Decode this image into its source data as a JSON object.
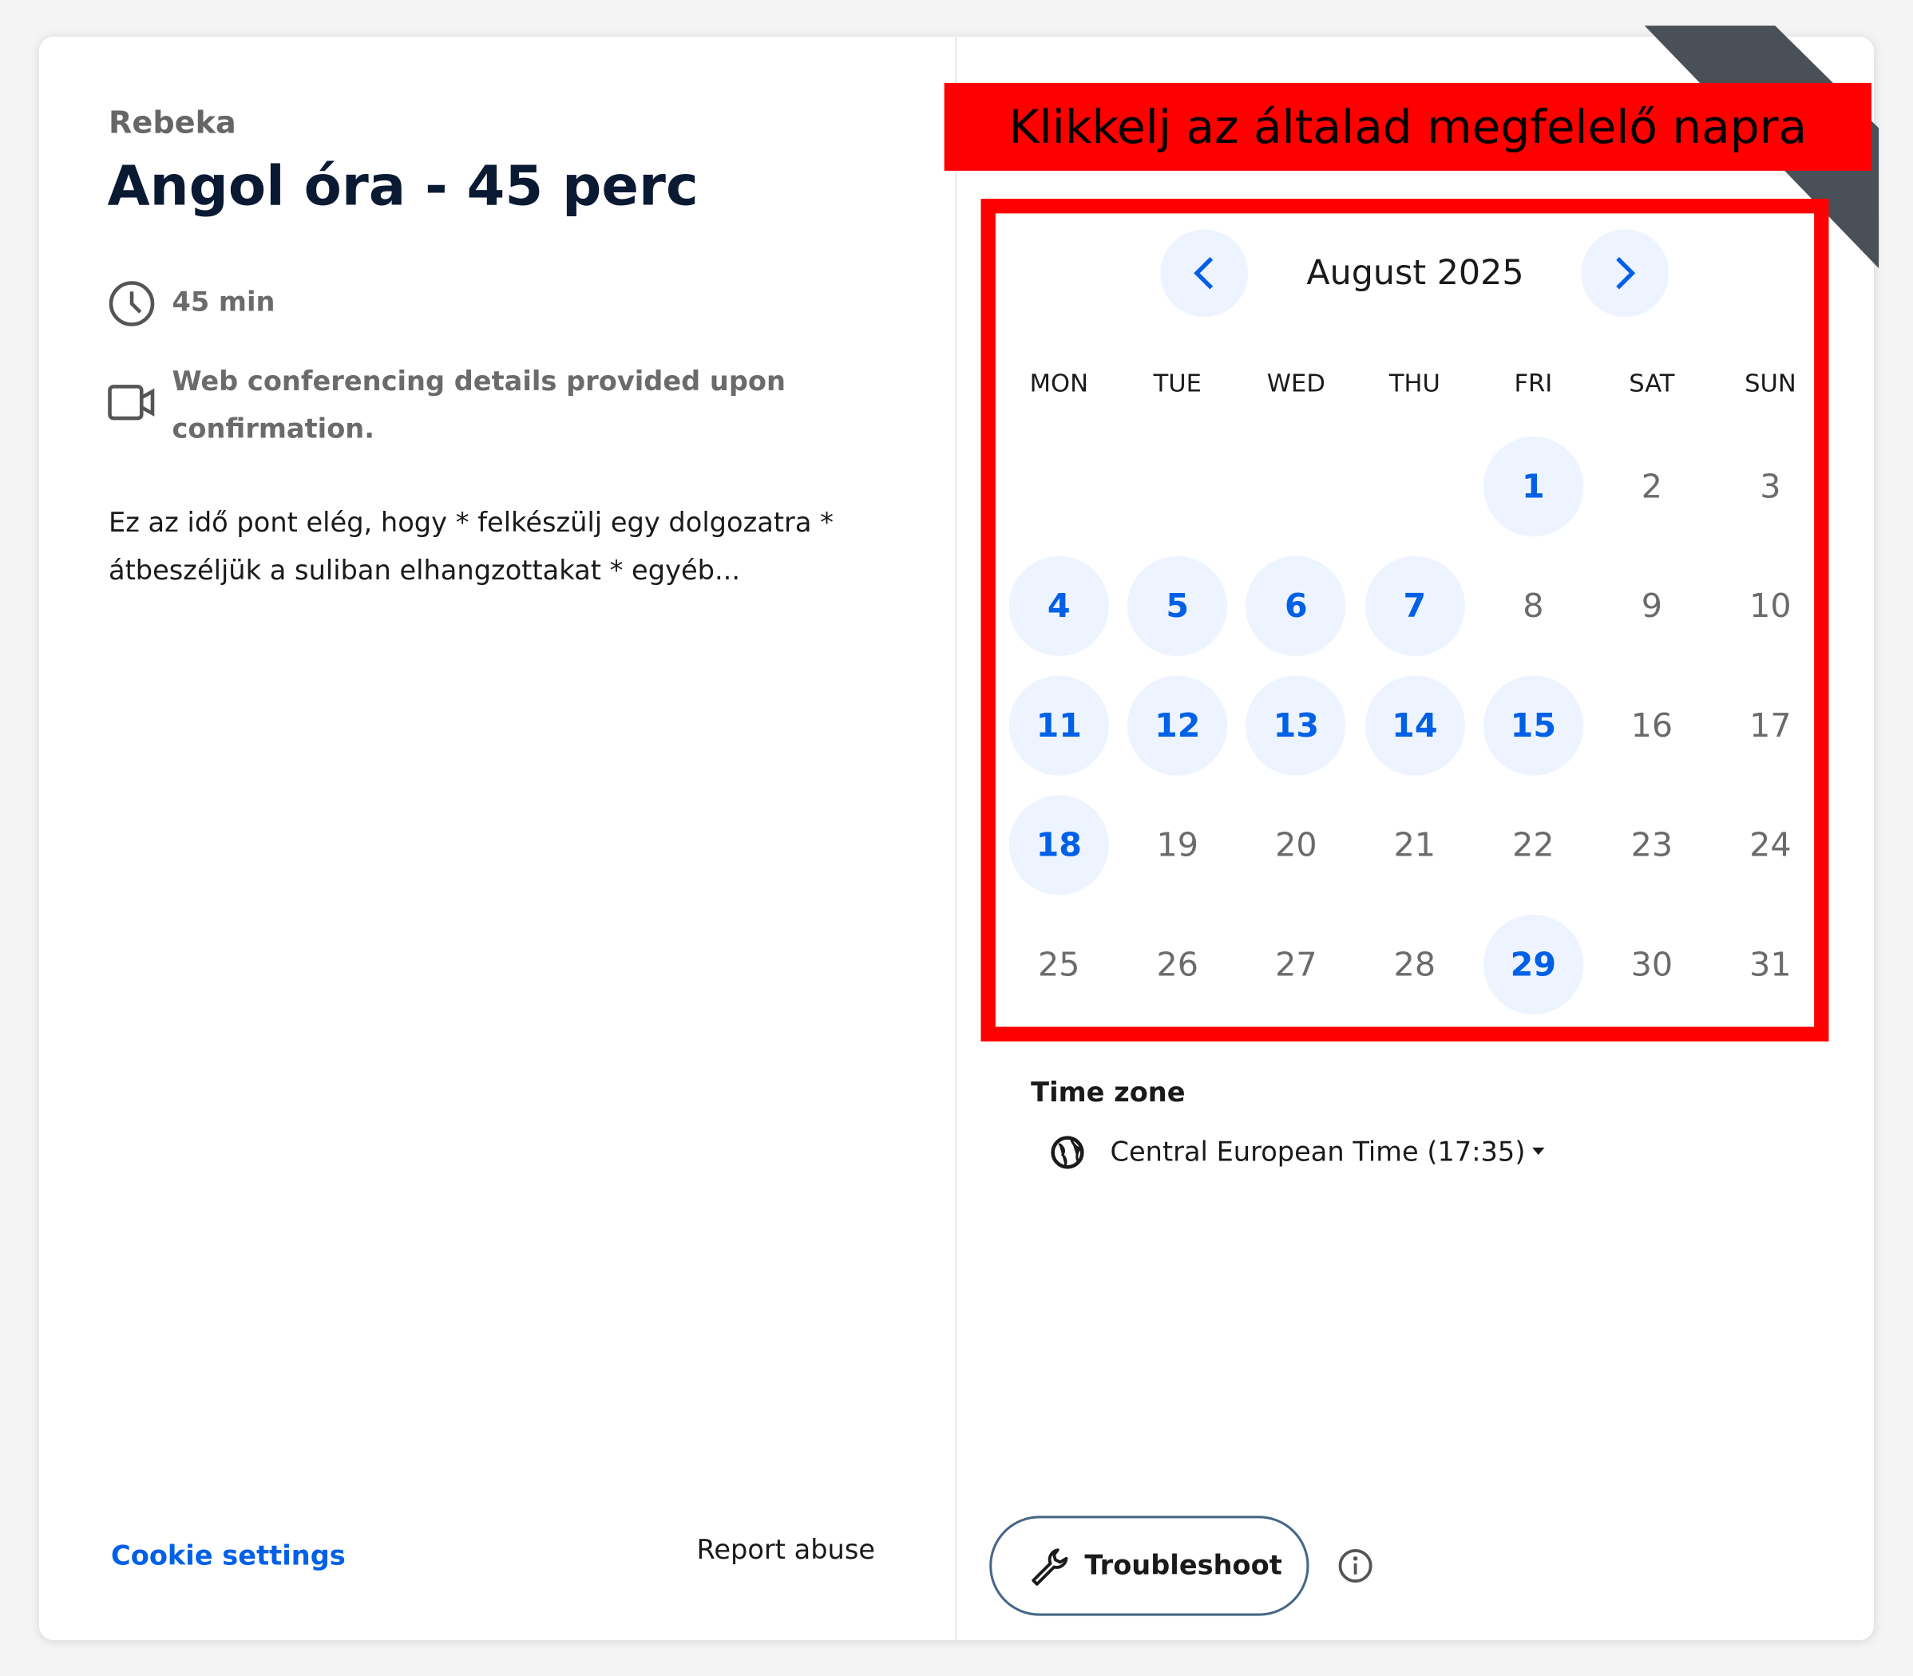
{
  "header": {
    "host": "Rebeka",
    "title": "Angol óra - 45 perc"
  },
  "details": {
    "duration": "45 min",
    "conferencing": "Web conferencing details provided upon confirmation."
  },
  "description": "Ez az idő pont elég, hogy * felkészülj egy dolgozatra * átbeszéljük a suliban elhangzottakat * egyéb...",
  "annotation": "Klikkelj az általad megfelelő napra",
  "calendar": {
    "month": "August 2025",
    "weekdays": [
      "MON",
      "TUE",
      "WED",
      "THU",
      "FRI",
      "SAT",
      "SUN"
    ],
    "weeks": [
      [
        null,
        null,
        null,
        null,
        {
          "day": "1",
          "available": true
        },
        {
          "day": "2",
          "available": false
        },
        {
          "day": "3",
          "available": false
        }
      ],
      [
        {
          "day": "4",
          "available": true
        },
        {
          "day": "5",
          "available": true
        },
        {
          "day": "6",
          "available": true
        },
        {
          "day": "7",
          "available": true
        },
        {
          "day": "8",
          "available": false
        },
        {
          "day": "9",
          "available": false
        },
        {
          "day": "10",
          "available": false
        }
      ],
      [
        {
          "day": "11",
          "available": true
        },
        {
          "day": "12",
          "available": true
        },
        {
          "day": "13",
          "available": true
        },
        {
          "day": "14",
          "available": true
        },
        {
          "day": "15",
          "available": true
        },
        {
          "day": "16",
          "available": false
        },
        {
          "day": "17",
          "available": false
        }
      ],
      [
        {
          "day": "18",
          "available": true
        },
        {
          "day": "19",
          "available": false
        },
        {
          "day": "20",
          "available": false
        },
        {
          "day": "21",
          "available": false
        },
        {
          "day": "22",
          "available": false
        },
        {
          "day": "23",
          "available": false
        },
        {
          "day": "24",
          "available": false
        }
      ],
      [
        {
          "day": "25",
          "available": false
        },
        {
          "day": "26",
          "available": false
        },
        {
          "day": "27",
          "available": false
        },
        {
          "day": "28",
          "available": false
        },
        {
          "day": "29",
          "available": true
        },
        {
          "day": "30",
          "available": false
        },
        {
          "day": "31",
          "available": false
        }
      ]
    ]
  },
  "timezone": {
    "label": "Time zone",
    "value": "Central European Time (17:35)"
  },
  "footer": {
    "cookie_settings": "Cookie settings",
    "report_abuse": "Report abuse",
    "troubleshoot": "Troubleshoot"
  }
}
